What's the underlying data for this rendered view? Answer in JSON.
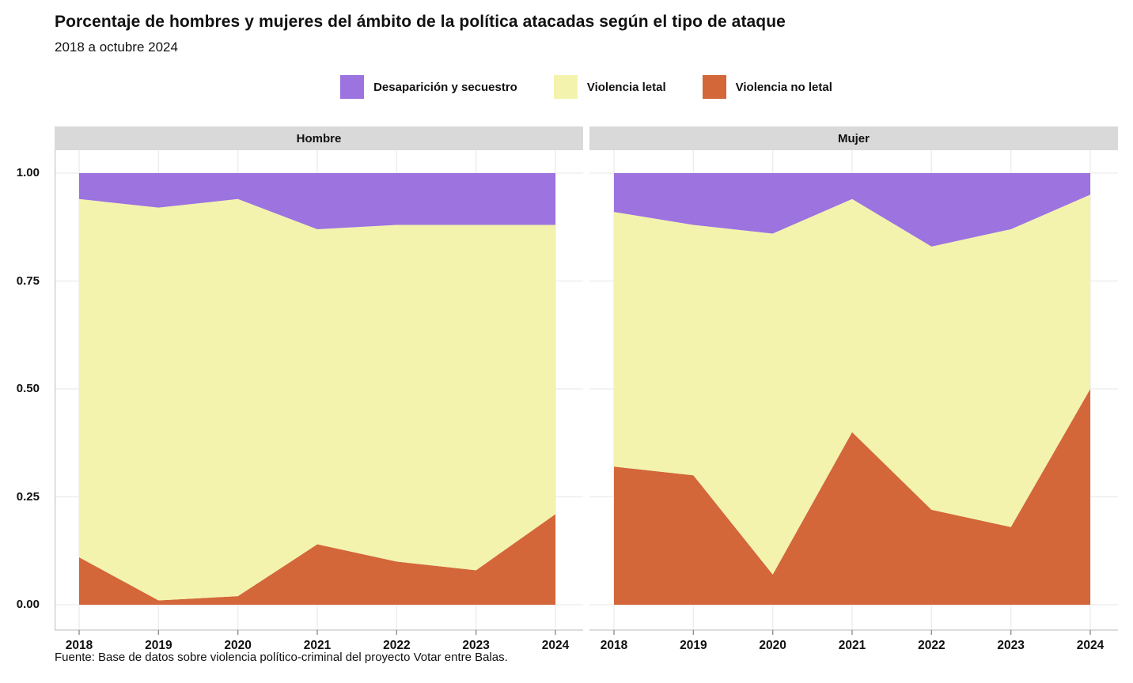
{
  "title": "Porcentaje de hombres y mujeres del ámbito de la política atacadas según el tipo de ataque",
  "subtitle": "2018 a octubre 2024",
  "caption": "Fuente: Base de datos sobre violencia político-criminal del proyecto Votar entre Balas.",
  "legend": {
    "items": [
      {
        "label": "Desaparición y secuestro",
        "color": "#9c73df"
      },
      {
        "label": "Violencia letal",
        "color": "#f3f3ad"
      },
      {
        "label": "Violencia no letal",
        "color": "#d3673a"
      }
    ]
  },
  "colors": {
    "purple": "#9c73df",
    "yellow": "#f3f3ad",
    "orange": "#d3673a",
    "strip_bg": "#d9d9d9",
    "grid": "#ececec",
    "axis_line": "#c6c6c6",
    "tick": "#8f8f8f",
    "text": "#111111"
  },
  "chart_data": [
    {
      "type": "area",
      "facet": "Hombre",
      "x": [
        2018,
        2019,
        2020,
        2021,
        2022,
        2023,
        2024
      ],
      "stack_order_bottom_to_top": [
        "Violencia no letal",
        "Violencia letal",
        "Desaparición y secuestro"
      ],
      "series": [
        {
          "name": "Violencia no letal",
          "color": "#d3673a",
          "values": [
            0.11,
            0.01,
            0.02,
            0.14,
            0.1,
            0.08,
            0.21
          ]
        },
        {
          "name": "Violencia letal",
          "color": "#f3f3ad",
          "values": [
            0.83,
            0.91,
            0.92,
            0.73,
            0.78,
            0.8,
            0.67
          ]
        },
        {
          "name": "Desaparición y secuestro",
          "color": "#9c73df",
          "values": [
            0.06,
            0.08,
            0.06,
            0.13,
            0.12,
            0.12,
            0.12
          ]
        }
      ],
      "ylim": [
        0,
        1
      ],
      "yticks": [
        "1.00",
        "0.75",
        "0.50",
        "0.25",
        "0.00"
      ],
      "grid": true,
      "legend_position": "top"
    },
    {
      "type": "area",
      "facet": "Mujer",
      "x": [
        2018,
        2019,
        2020,
        2021,
        2022,
        2023,
        2024
      ],
      "stack_order_bottom_to_top": [
        "Violencia no letal",
        "Violencia letal",
        "Desaparición y secuestro"
      ],
      "series": [
        {
          "name": "Violencia no letal",
          "color": "#d3673a",
          "values": [
            0.32,
            0.3,
            0.07,
            0.4,
            0.22,
            0.18,
            0.5
          ]
        },
        {
          "name": "Violencia letal",
          "color": "#f3f3ad",
          "values": [
            0.59,
            0.58,
            0.79,
            0.54,
            0.61,
            0.69,
            0.45
          ]
        },
        {
          "name": "Desaparición y secuestro",
          "color": "#9c73df",
          "values": [
            0.09,
            0.12,
            0.14,
            0.06,
            0.17,
            0.13,
            0.05
          ]
        }
      ],
      "ylim": [
        0,
        1
      ],
      "yticks": [
        "1.00",
        "0.75",
        "0.50",
        "0.25",
        "0.00"
      ],
      "grid": true,
      "legend_position": "top"
    }
  ]
}
